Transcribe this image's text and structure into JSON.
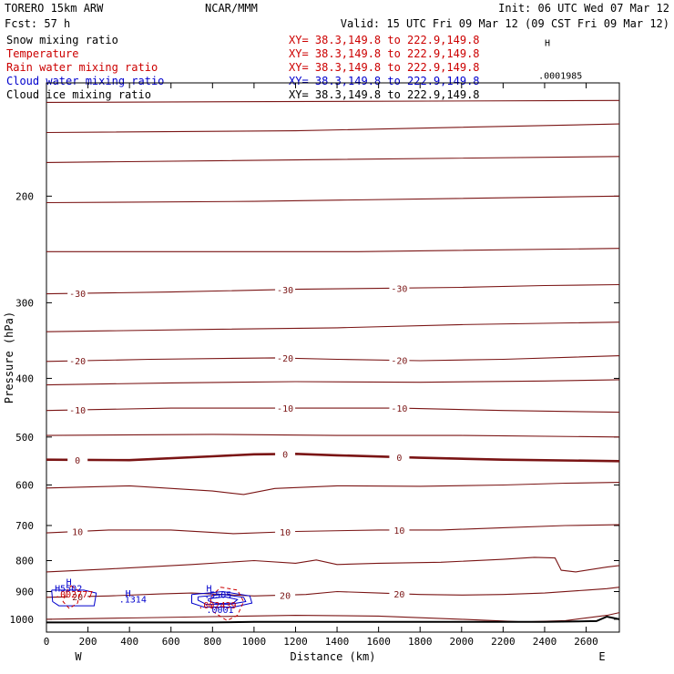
{
  "header": {
    "model": "TORERO  15km ARW",
    "org": "NCAR/MMM",
    "init": "Init: 06 UTC Wed 07 Mar 12",
    "fcst": "Fcst:   57 h",
    "valid": "Valid: 15 UTC Fri 09 Mar 12 (09 CST Fri 09 Mar 12)"
  },
  "legend": [
    {
      "name": "Snow mixing ratio",
      "color": "#000000",
      "xy": "XY=  38.3,149.8 to 222.9,149.8",
      "xy_color": "#cc0000"
    },
    {
      "name": "Temperature",
      "color": "#cc0000",
      "xy": "XY=  38.3,149.8 to 222.9,149.8",
      "xy_color": "#cc0000"
    },
    {
      "name": "Rain water mixing ratio",
      "color": "#cc0000",
      "xy": "XY=  38.3,149.8 to 222.9,149.8",
      "xy_color": "#cc0000"
    },
    {
      "name": "Cloud water mixing ratio",
      "color": "#0000cc",
      "xy": "XY=  38.3,149.8 to 222.9,149.8",
      "xy_color": "#0000cc"
    },
    {
      "name": "Cloud ice mixing ratio",
      "color": "#000000",
      "xy": "XY=  38.3,149.8 to 222.9,149.8",
      "xy_color": "#000000"
    }
  ],
  "colors": {
    "temperature": "#7a1414",
    "freezing": "#7a1414",
    "terrain": "#000000",
    "cloud_water": "#0000cc",
    "rain": "#cc0000",
    "axes": "#000000"
  },
  "chart_data": {
    "type": "contour-cross-section",
    "xlabel": "Distance (km)",
    "ylabel": "Pressure (hPa)",
    "xlim": [
      0,
      2760
    ],
    "ylim": [
      1050,
      130
    ],
    "y_scale": "log",
    "x_ticks": [
      0,
      200,
      400,
      600,
      800,
      1000,
      1200,
      1400,
      1600,
      1800,
      2000,
      2200,
      2400,
      2600
    ],
    "y_ticks": [
      200,
      300,
      400,
      500,
      600,
      700,
      800,
      900,
      1000
    ],
    "x_ends": {
      "left": "W",
      "right": "E"
    },
    "isotherms": [
      {
        "value": -55,
        "label": "",
        "bold": false,
        "points": [
          [
            0,
            140
          ],
          [
            2760,
            139
          ]
        ]
      },
      {
        "value": -50,
        "label": "",
        "bold": false,
        "points": [
          [
            0,
            157
          ],
          [
            1200,
            156
          ],
          [
            2760,
            152
          ]
        ]
      },
      {
        "value": -45,
        "label": "",
        "bold": false,
        "points": [
          [
            0,
            176
          ],
          [
            1400,
            174
          ],
          [
            2760,
            172
          ]
        ]
      },
      {
        "value": -40,
        "label": "",
        "bold": false,
        "points": [
          [
            0,
            205
          ],
          [
            1000,
            204
          ],
          [
            2760,
            200
          ]
        ]
      },
      {
        "value": -35,
        "label": "",
        "bold": false,
        "points": [
          [
            0,
            247
          ],
          [
            1500,
            247
          ],
          [
            2760,
            244
          ]
        ]
      },
      {
        "value": -30,
        "label": "-30",
        "bold": false,
        "points": [
          [
            0,
            290
          ],
          [
            600,
            288
          ],
          [
            1200,
            285
          ],
          [
            1600,
            284
          ],
          [
            2000,
            283
          ],
          [
            2400,
            281
          ],
          [
            2760,
            280
          ]
        ]
      },
      {
        "value": -25,
        "label": "",
        "bold": false,
        "points": [
          [
            0,
            335
          ],
          [
            800,
            332
          ],
          [
            1400,
            330
          ],
          [
            2000,
            326
          ],
          [
            2760,
            323
          ]
        ]
      },
      {
        "value": -20,
        "label": "-20",
        "bold": false,
        "points": [
          [
            0,
            375
          ],
          [
            500,
            372
          ],
          [
            1100,
            370
          ],
          [
            1400,
            372
          ],
          [
            1800,
            374
          ],
          [
            2200,
            372
          ],
          [
            2760,
            367
          ]
        ]
      },
      {
        "value": -15,
        "label": "",
        "bold": false,
        "points": [
          [
            0,
            410
          ],
          [
            600,
            407
          ],
          [
            1200,
            405
          ],
          [
            1800,
            406
          ],
          [
            2400,
            404
          ],
          [
            2760,
            402
          ]
        ]
      },
      {
        "value": -10,
        "label": "-10",
        "bold": false,
        "points": [
          [
            0,
            452
          ],
          [
            600,
            448
          ],
          [
            1200,
            448
          ],
          [
            1700,
            448
          ],
          [
            2200,
            452
          ],
          [
            2760,
            455
          ]
        ]
      },
      {
        "value": -5,
        "label": "",
        "bold": false,
        "points": [
          [
            0,
            497
          ],
          [
            800,
            495
          ],
          [
            1400,
            497
          ],
          [
            2000,
            497
          ],
          [
            2760,
            500
          ]
        ]
      },
      {
        "value": 0,
        "label": "0",
        "bold": true,
        "points": [
          [
            0,
            545
          ],
          [
            400,
            546
          ],
          [
            800,
            538
          ],
          [
            1000,
            534
          ],
          [
            1200,
            533
          ],
          [
            1400,
            536
          ],
          [
            1800,
            541
          ],
          [
            2200,
            545
          ],
          [
            2760,
            548
          ]
        ]
      },
      {
        "value": 5,
        "label": "",
        "bold": false,
        "points": [
          [
            0,
            607
          ],
          [
            400,
            602
          ],
          [
            800,
            614
          ],
          [
            950,
            622
          ],
          [
            1100,
            608
          ],
          [
            1400,
            602
          ],
          [
            1800,
            603
          ],
          [
            2200,
            600
          ],
          [
            2500,
            596
          ],
          [
            2760,
            594
          ]
        ]
      },
      {
        "value": 10,
        "label": "10",
        "bold": false,
        "points": [
          [
            0,
            720
          ],
          [
            300,
            712
          ],
          [
            600,
            712
          ],
          [
            900,
            722
          ],
          [
            1200,
            716
          ],
          [
            1600,
            712
          ],
          [
            1900,
            712
          ],
          [
            2200,
            706
          ],
          [
            2500,
            700
          ],
          [
            2760,
            698
          ]
        ]
      },
      {
        "value": 15,
        "label": "",
        "bold": false,
        "points": [
          [
            0,
            835
          ],
          [
            300,
            826
          ],
          [
            700,
            812
          ],
          [
            1000,
            800
          ],
          [
            1200,
            808
          ],
          [
            1300,
            798
          ],
          [
            1400,
            812
          ],
          [
            1600,
            808
          ],
          [
            1900,
            805
          ],
          [
            2200,
            796
          ],
          [
            2350,
            790
          ],
          [
            2450,
            792
          ],
          [
            2480,
            830
          ],
          [
            2550,
            835
          ],
          [
            2700,
            820
          ],
          [
            2760,
            815
          ]
        ]
      },
      {
        "value": 20,
        "label": "20",
        "bold": false,
        "points": [
          [
            0,
            920
          ],
          [
            300,
            915
          ],
          [
            550,
            908
          ],
          [
            700,
            905
          ],
          [
            1000,
            915
          ],
          [
            1250,
            910
          ],
          [
            1400,
            900
          ],
          [
            1600,
            905
          ],
          [
            1800,
            910
          ],
          [
            2000,
            912
          ],
          [
            2200,
            910
          ],
          [
            2400,
            905
          ],
          [
            2600,
            895
          ],
          [
            2700,
            890
          ],
          [
            2760,
            885
          ]
        ]
      },
      {
        "value": 25,
        "label": "",
        "bold": false,
        "points": [
          [
            0,
            1000
          ],
          [
            400,
            995
          ],
          [
            800,
            990
          ],
          [
            1200,
            985
          ],
          [
            1600,
            988
          ],
          [
            2000,
            1000
          ],
          [
            2300,
            1010
          ],
          [
            2500,
            1005
          ],
          [
            2700,
            985
          ],
          [
            2760,
            975
          ]
        ]
      }
    ],
    "terrain": [
      [
        0,
        1012
      ],
      [
        800,
        1012
      ],
      [
        1000,
        1010
      ],
      [
        1600,
        1010
      ],
      [
        2400,
        1010
      ],
      [
        2650,
        1007
      ],
      [
        2700,
        990
      ],
      [
        2760,
        1000
      ]
    ],
    "labels": [
      {
        "text": "H",
        "x": 95,
        "p": 878,
        "color": "#0000cc"
      },
      {
        "text": "H5502",
        "x": 40,
        "p": 900,
        "color": "#0000cc"
      },
      {
        "text": ".002777",
        "x": 40,
        "p": 920,
        "color": "#cc0000"
      },
      {
        "text": "H",
        "x": 380,
        "p": 917,
        "color": "#0000cc"
      },
      {
        "text": ".1314",
        "x": 350,
        "p": 938,
        "color": "#0000cc"
      },
      {
        "text": "H",
        "x": 770,
        "p": 900,
        "color": "#0000cc"
      },
      {
        "text": ".5505",
        "x": 760,
        "p": 922,
        "color": "#0000cc"
      },
      {
        "text": ".002439",
        "x": 730,
        "p": 960,
        "color": "#cc0000"
      },
      {
        "text": ".0001",
        "x": 770,
        "p": 977,
        "color": "#0000cc"
      },
      {
        "text": "H",
        "x": 2400,
        "p": 113,
        "color": "#000000"
      },
      {
        "text": ".0001985",
        "x": 2370,
        "p": 128,
        "color": "#000000"
      }
    ],
    "cloud_water_contours": [
      [
        [
          25,
          895
        ],
        [
          180,
          895
        ],
        [
          240,
          905
        ],
        [
          230,
          950
        ],
        [
          60,
          950
        ],
        [
          30,
          935
        ],
        [
          25,
          895
        ]
      ],
      [
        [
          700,
          910
        ],
        [
          850,
          900
        ],
        [
          980,
          915
        ],
        [
          990,
          940
        ],
        [
          900,
          955
        ],
        [
          760,
          955
        ],
        [
          700,
          940
        ],
        [
          700,
          910
        ]
      ],
      [
        [
          730,
          918
        ],
        [
          850,
          910
        ],
        [
          950,
          920
        ],
        [
          960,
          935
        ],
        [
          880,
          945
        ],
        [
          770,
          945
        ],
        [
          730,
          930
        ],
        [
          730,
          918
        ]
      ],
      [
        [
          780,
          925
        ],
        [
          860,
          918
        ],
        [
          920,
          928
        ],
        [
          900,
          940
        ],
        [
          820,
          942
        ],
        [
          780,
          932
        ],
        [
          780,
          925
        ]
      ]
    ],
    "rain_contours": [
      [
        [
          120,
          880
        ],
        [
          160,
          900
        ],
        [
          150,
          940
        ],
        [
          110,
          960
        ],
        [
          80,
          935
        ],
        [
          95,
          900
        ],
        [
          120,
          880
        ]
      ],
      [
        [
          840,
          885
        ],
        [
          920,
          895
        ],
        [
          950,
          935
        ],
        [
          920,
          985
        ],
        [
          870,
          1005
        ],
        [
          800,
          970
        ],
        [
          790,
          920
        ],
        [
          840,
          885
        ]
      ]
    ]
  }
}
